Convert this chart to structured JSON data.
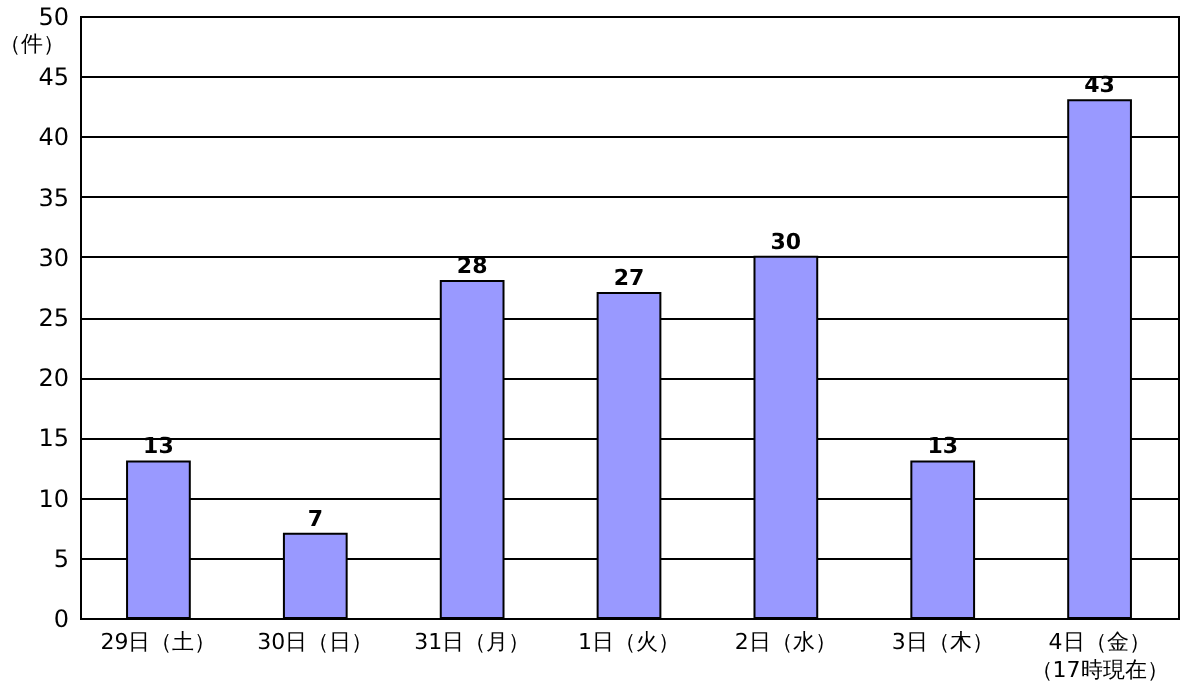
{
  "chart_data": {
    "type": "bar",
    "ylabel": "（件）",
    "categories": [
      "29日（土）",
      "30日（日）",
      "31日（月）",
      "1日（火）",
      "2日（水）",
      "3日（木）",
      "4日（金）（17時現在）"
    ],
    "values": [
      13,
      7,
      28,
      27,
      30,
      13,
      43
    ],
    "color": "#9999ff",
    "ylim": [
      0,
      50
    ],
    "yticks": [
      0,
      5,
      10,
      15,
      20,
      25,
      30,
      35,
      40,
      45,
      50
    ],
    "grid": "y",
    "data_labels": true
  }
}
